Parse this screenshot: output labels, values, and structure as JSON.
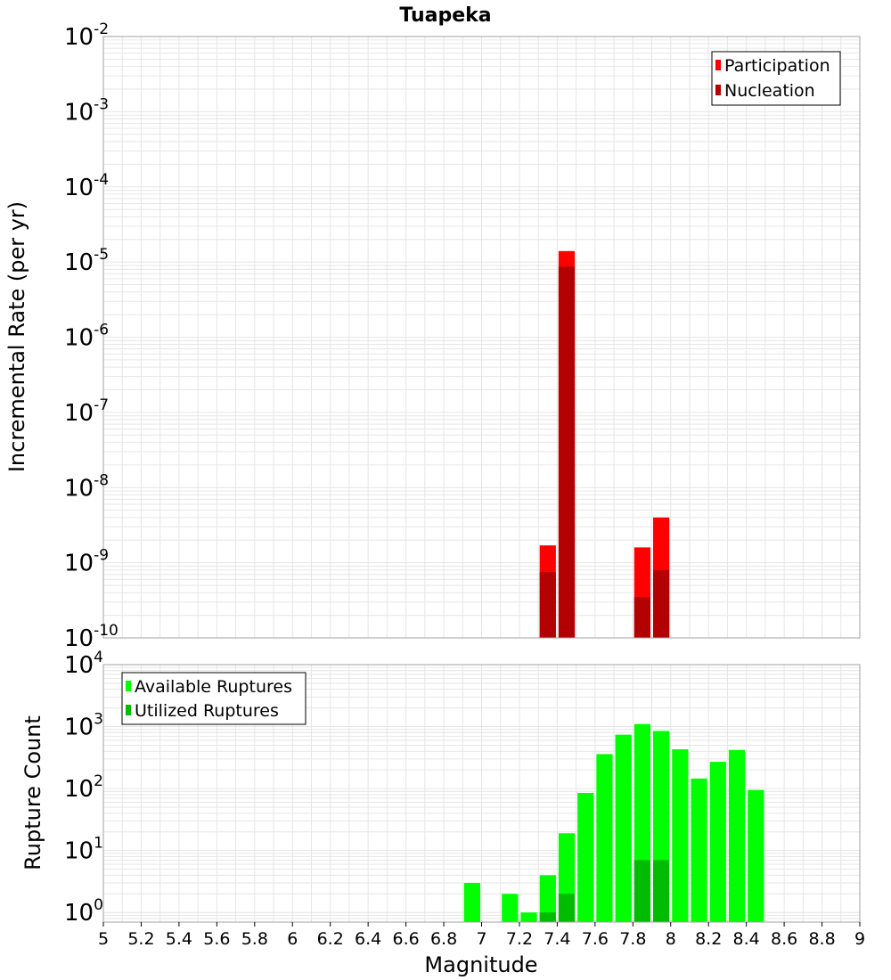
{
  "title": "Tuapeka",
  "xlabel": "Magnitude",
  "colors": {
    "participation": "#ff0000",
    "nucleation": "#b30000",
    "available": "#00ff00",
    "utilized": "#00bb00",
    "grid": "#e6e6e6",
    "frame": "#a0a0a0"
  },
  "chart_data": [
    {
      "type": "bar",
      "title": "Tuapeka",
      "ylabel": "Incremental Rate (per yr)",
      "xlabel": "Magnitude",
      "xlim": [
        5,
        9
      ],
      "ylim": [
        1e-10,
        0.01
      ],
      "yscale": "log",
      "grid": true,
      "legend_position": "top-right",
      "y_tick_exponents": [
        "-10",
        "-9",
        "-8",
        "-7",
        "-6",
        "-5",
        "-4",
        "-3",
        "-2"
      ],
      "bin_width": 0.1,
      "series": [
        {
          "name": "Participation",
          "color": "#ff0000",
          "points": [
            {
              "x": 7.35,
              "y": 1.7e-09
            },
            {
              "x": 7.45,
              "y": 1.4e-05
            },
            {
              "x": 7.85,
              "y": 1.6e-09
            },
            {
              "x": 7.95,
              "y": 4e-09
            }
          ]
        },
        {
          "name": "Nucleation",
          "color": "#b30000",
          "points": [
            {
              "x": 7.35,
              "y": 7.5e-10
            },
            {
              "x": 7.45,
              "y": 8.7e-06
            },
            {
              "x": 7.85,
              "y": 3.5e-10
            },
            {
              "x": 7.95,
              "y": 8e-10
            }
          ]
        }
      ]
    },
    {
      "type": "bar",
      "ylabel": "Rupture Count",
      "xlabel": "Magnitude",
      "xlim": [
        5,
        9
      ],
      "ylim": [
        0.7,
        10000
      ],
      "yscale": "log",
      "grid": true,
      "legend_position": "top-left",
      "y_tick_exponents": [
        "0",
        "1",
        "2",
        "3",
        "4"
      ],
      "x_ticks": [
        "5",
        "5.2",
        "5.4",
        "5.6",
        "5.8",
        "6",
        "6.2",
        "6.4",
        "6.6",
        "6.8",
        "7",
        "7.2",
        "7.4",
        "7.6",
        "7.8",
        "8",
        "8.2",
        "8.4",
        "8.6",
        "8.8",
        "9"
      ],
      "bin_width": 0.1,
      "series": [
        {
          "name": "Available Ruptures",
          "color": "#00ff00",
          "points": [
            {
              "x": 6.95,
              "y": 3
            },
            {
              "x": 7.15,
              "y": 2
            },
            {
              "x": 7.25,
              "y": 1
            },
            {
              "x": 7.35,
              "y": 4
            },
            {
              "x": 7.45,
              "y": 19
            },
            {
              "x": 7.55,
              "y": 85
            },
            {
              "x": 7.65,
              "y": 360
            },
            {
              "x": 7.75,
              "y": 740
            },
            {
              "x": 7.85,
              "y": 1100
            },
            {
              "x": 7.95,
              "y": 850
            },
            {
              "x": 8.05,
              "y": 430
            },
            {
              "x": 8.15,
              "y": 145
            },
            {
              "x": 8.25,
              "y": 270
            },
            {
              "x": 8.35,
              "y": 420
            },
            {
              "x": 8.45,
              "y": 95
            }
          ]
        },
        {
          "name": "Utilized Ruptures",
          "color": "#00bb00",
          "points": [
            {
              "x": 7.35,
              "y": 1
            },
            {
              "x": 7.45,
              "y": 2
            },
            {
              "x": 7.85,
              "y": 7
            },
            {
              "x": 7.95,
              "y": 7
            }
          ]
        }
      ]
    }
  ]
}
